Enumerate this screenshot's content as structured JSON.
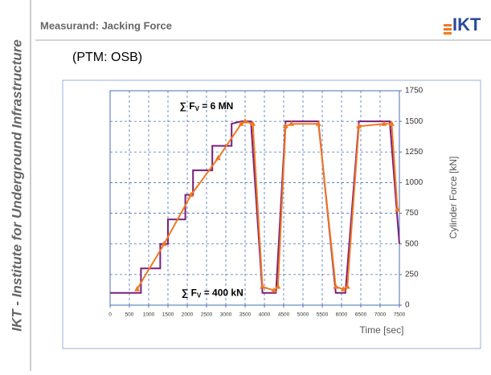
{
  "sidebar": "IKT - Institute for Underground Infrastructure",
  "header": {
    "title": "Measurand: Jacking Force",
    "logo": "IKT"
  },
  "subtitle": "(PTM: OSB)",
  "chart_data": {
    "type": "line",
    "xlabel": "Time [sec]",
    "ylabel": "Cylinder Force [kN]",
    "xlim": [
      0,
      7500
    ],
    "xticks": [
      0,
      500,
      1000,
      1500,
      2000,
      2500,
      3000,
      3500,
      4000,
      4500,
      5000,
      5500,
      6000,
      6500,
      7000,
      7500
    ],
    "ylim": [
      0,
      1750
    ],
    "yticks": [
      0,
      250,
      500,
      750,
      1000,
      1250,
      1500,
      1750
    ],
    "grid": true,
    "annotations": [
      {
        "text": "∑ F",
        "sub": "V",
        "rest": " = 6 MN",
        "x": 1800,
        "y": 1620
      },
      {
        "text": "∑ F",
        "sub": "V",
        "rest": " = 400 kN",
        "x": 1850,
        "y": 95
      }
    ],
    "series": [
      {
        "color": "#7a1f7a",
        "marker": false,
        "x": [
          0,
          800,
          800,
          1300,
          1300,
          1500,
          1500,
          1950,
          1950,
          2150,
          2150,
          2650,
          2650,
          3150,
          3150,
          3400,
          3650,
          3950,
          4300,
          4550,
          5400,
          5850,
          6100,
          6450,
          7250,
          7500
        ],
        "values": [
          100,
          100,
          300,
          300,
          500,
          500,
          700,
          700,
          900,
          900,
          1100,
          1100,
          1300,
          1300,
          1480,
          1500,
          1500,
          100,
          100,
          1500,
          1500,
          100,
          100,
          1500,
          1500,
          500
        ]
      },
      {
        "color": "#f07820",
        "marker": true,
        "x": [
          700,
          1400,
          2100,
          2800,
          3400,
          3500,
          3700,
          3950,
          4250,
          4350,
          4550,
          4700,
          5400,
          5850,
          6050,
          6150,
          6450,
          7100,
          7300,
          7450
        ],
        "values": [
          130,
          500,
          900,
          1200,
          1480,
          1500,
          1480,
          150,
          120,
          150,
          1460,
          1480,
          1480,
          150,
          130,
          150,
          1460,
          1480,
          1480,
          780
        ]
      }
    ]
  }
}
